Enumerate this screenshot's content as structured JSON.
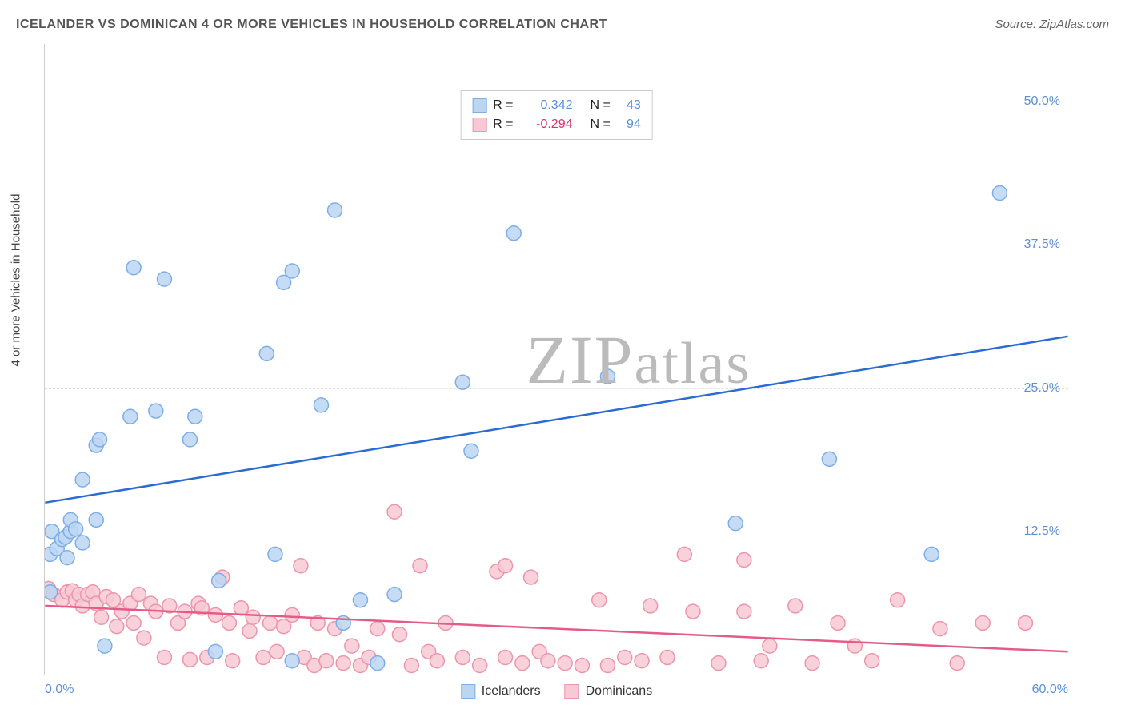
{
  "title": "ICELANDER VS DOMINICAN 4 OR MORE VEHICLES IN HOUSEHOLD CORRELATION CHART",
  "source": "Source: ZipAtlas.com",
  "yaxis_label": "4 or more Vehicles in Household",
  "watermark": {
    "pre": "ZIP",
    "post": "atlas"
  },
  "chart": {
    "type": "scatter",
    "xlim": [
      0,
      60
    ],
    "ylim": [
      0,
      55
    ],
    "yticks": [
      {
        "value": 12.5,
        "label": "12.5%"
      },
      {
        "value": 25.0,
        "label": "25.0%"
      },
      {
        "value": 37.5,
        "label": "37.5%"
      },
      {
        "value": 50.0,
        "label": "50.0%"
      }
    ],
    "xticks": [
      {
        "value": 0,
        "label": "0.0%",
        "align": "left"
      },
      {
        "value": 60,
        "label": "60.0%",
        "align": "right"
      }
    ],
    "background_color": "#ffffff",
    "grid_color": "#dddddd",
    "series": [
      {
        "name": "Icelanders",
        "marker_fill": "#bcd6f2",
        "marker_stroke": "#7daee6",
        "marker_radius": 9,
        "line_color": "#2b6cd4",
        "line_width": 2.5,
        "correlation": {
          "R_label": "R =",
          "R_value": "0.342",
          "R_neg": false,
          "N_label": "N =",
          "N_value": "43"
        },
        "regression": {
          "x1": 0,
          "y1": 15.0,
          "x2": 60,
          "y2": 29.5
        },
        "points": [
          {
            "x": 0.3,
            "y": 10.5
          },
          {
            "x": 0.3,
            "y": 7.2
          },
          {
            "x": 0.4,
            "y": 12.5
          },
          {
            "x": 0.7,
            "y": 11.0
          },
          {
            "x": 1.0,
            "y": 11.8
          },
          {
            "x": 1.2,
            "y": 12.0
          },
          {
            "x": 1.3,
            "y": 10.2
          },
          {
            "x": 1.5,
            "y": 12.5
          },
          {
            "x": 1.5,
            "y": 13.5
          },
          {
            "x": 1.8,
            "y": 12.7
          },
          {
            "x": 2.2,
            "y": 17.0
          },
          {
            "x": 2.2,
            "y": 11.5
          },
          {
            "x": 3.0,
            "y": 13.5
          },
          {
            "x": 3.0,
            "y": 20.0
          },
          {
            "x": 3.2,
            "y": 20.5
          },
          {
            "x": 3.5,
            "y": 2.5
          },
          {
            "x": 5.0,
            "y": 22.5
          },
          {
            "x": 5.2,
            "y": 35.5
          },
          {
            "x": 6.5,
            "y": 23.0
          },
          {
            "x": 7.0,
            "y": 34.5
          },
          {
            "x": 8.5,
            "y": 20.5
          },
          {
            "x": 8.8,
            "y": 22.5
          },
          {
            "x": 10.0,
            "y": 2.0
          },
          {
            "x": 10.2,
            "y": 8.2
          },
          {
            "x": 13.0,
            "y": 28.0
          },
          {
            "x": 13.5,
            "y": 10.5
          },
          {
            "x": 14.0,
            "y": 34.2
          },
          {
            "x": 14.5,
            "y": 35.2
          },
          {
            "x": 14.5,
            "y": 1.2
          },
          {
            "x": 16.2,
            "y": 23.5
          },
          {
            "x": 17.0,
            "y": 40.5
          },
          {
            "x": 17.5,
            "y": 4.5
          },
          {
            "x": 18.5,
            "y": 6.5
          },
          {
            "x": 20.5,
            "y": 7.0
          },
          {
            "x": 24.5,
            "y": 25.5
          },
          {
            "x": 25.0,
            "y": 19.5
          },
          {
            "x": 27.5,
            "y": 38.5
          },
          {
            "x": 33.0,
            "y": 26.0
          },
          {
            "x": 40.5,
            "y": 13.2
          },
          {
            "x": 46.0,
            "y": 18.8
          },
          {
            "x": 52.0,
            "y": 10.5
          },
          {
            "x": 56.0,
            "y": 42.0
          },
          {
            "x": 19.5,
            "y": 1.0
          }
        ]
      },
      {
        "name": "Dominicans",
        "marker_fill": "#f7c9d4",
        "marker_stroke": "#ec95ab",
        "marker_radius": 9,
        "line_color": "#e55b87",
        "line_width": 2.5,
        "correlation": {
          "R_label": "R =",
          "R_value": "-0.294",
          "R_neg": true,
          "N_label": "N =",
          "N_value": "94"
        },
        "regression": {
          "x1": 0,
          "y1": 6.0,
          "x2": 60,
          "y2": 2.0
        },
        "points": [
          {
            "x": 0.2,
            "y": 7.5
          },
          {
            "x": 0.5,
            "y": 7.0
          },
          {
            "x": 1.0,
            "y": 6.5
          },
          {
            "x": 1.3,
            "y": 7.2
          },
          {
            "x": 1.6,
            "y": 7.3
          },
          {
            "x": 1.8,
            "y": 6.5
          },
          {
            "x": 2.0,
            "y": 7.0
          },
          {
            "x": 2.2,
            "y": 6.0
          },
          {
            "x": 2.5,
            "y": 7.0
          },
          {
            "x": 2.8,
            "y": 7.2
          },
          {
            "x": 3.0,
            "y": 6.2
          },
          {
            "x": 3.3,
            "y": 5.0
          },
          {
            "x": 3.6,
            "y": 6.8
          },
          {
            "x": 4.0,
            "y": 6.5
          },
          {
            "x": 4.2,
            "y": 4.2
          },
          {
            "x": 4.5,
            "y": 5.5
          },
          {
            "x": 5.0,
            "y": 6.2
          },
          {
            "x": 5.2,
            "y": 4.5
          },
          {
            "x": 5.5,
            "y": 7.0
          },
          {
            "x": 5.8,
            "y": 3.2
          },
          {
            "x": 6.2,
            "y": 6.2
          },
          {
            "x": 6.5,
            "y": 5.5
          },
          {
            "x": 7.0,
            "y": 1.5
          },
          {
            "x": 7.3,
            "y": 6.0
          },
          {
            "x": 7.8,
            "y": 4.5
          },
          {
            "x": 8.2,
            "y": 5.5
          },
          {
            "x": 8.5,
            "y": 1.3
          },
          {
            "x": 9.0,
            "y": 6.2
          },
          {
            "x": 9.2,
            "y": 5.8
          },
          {
            "x": 9.5,
            "y": 1.5
          },
          {
            "x": 10.0,
            "y": 5.2
          },
          {
            "x": 10.4,
            "y": 8.5
          },
          {
            "x": 10.8,
            "y": 4.5
          },
          {
            "x": 11.0,
            "y": 1.2
          },
          {
            "x": 11.5,
            "y": 5.8
          },
          {
            "x": 12.0,
            "y": 3.8
          },
          {
            "x": 12.2,
            "y": 5.0
          },
          {
            "x": 12.8,
            "y": 1.5
          },
          {
            "x": 13.2,
            "y": 4.5
          },
          {
            "x": 13.6,
            "y": 2.0
          },
          {
            "x": 14.0,
            "y": 4.2
          },
          {
            "x": 14.5,
            "y": 5.2
          },
          {
            "x": 15.0,
            "y": 9.5
          },
          {
            "x": 15.2,
            "y": 1.5
          },
          {
            "x": 15.8,
            "y": 0.8
          },
          {
            "x": 16.0,
            "y": 4.5
          },
          {
            "x": 16.5,
            "y": 1.2
          },
          {
            "x": 17.0,
            "y": 4.0
          },
          {
            "x": 17.5,
            "y": 1.0
          },
          {
            "x": 18.0,
            "y": 2.5
          },
          {
            "x": 18.5,
            "y": 0.8
          },
          {
            "x": 19.0,
            "y": 1.5
          },
          {
            "x": 19.5,
            "y": 4.0
          },
          {
            "x": 20.5,
            "y": 14.2
          },
          {
            "x": 20.8,
            "y": 3.5
          },
          {
            "x": 21.5,
            "y": 0.8
          },
          {
            "x": 22.0,
            "y": 9.5
          },
          {
            "x": 22.5,
            "y": 2.0
          },
          {
            "x": 23.0,
            "y": 1.2
          },
          {
            "x": 23.5,
            "y": 4.5
          },
          {
            "x": 24.5,
            "y": 1.5
          },
          {
            "x": 25.5,
            "y": 0.8
          },
          {
            "x": 26.5,
            "y": 9.0
          },
          {
            "x": 27.0,
            "y": 1.5
          },
          {
            "x": 27.0,
            "y": 9.5
          },
          {
            "x": 28.0,
            "y": 1.0
          },
          {
            "x": 28.5,
            "y": 8.5
          },
          {
            "x": 29.0,
            "y": 2.0
          },
          {
            "x": 29.5,
            "y": 1.2
          },
          {
            "x": 30.5,
            "y": 1.0
          },
          {
            "x": 31.5,
            "y": 0.8
          },
          {
            "x": 32.5,
            "y": 6.5
          },
          {
            "x": 33.0,
            "y": 0.8
          },
          {
            "x": 34.0,
            "y": 1.5
          },
          {
            "x": 35.0,
            "y": 1.2
          },
          {
            "x": 35.5,
            "y": 6.0
          },
          {
            "x": 36.5,
            "y": 1.5
          },
          {
            "x": 37.5,
            "y": 10.5
          },
          {
            "x": 38.0,
            "y": 5.5
          },
          {
            "x": 39.5,
            "y": 1.0
          },
          {
            "x": 41.0,
            "y": 10.0
          },
          {
            "x": 41.0,
            "y": 5.5
          },
          {
            "x": 42.0,
            "y": 1.2
          },
          {
            "x": 42.5,
            "y": 2.5
          },
          {
            "x": 44.0,
            "y": 6.0
          },
          {
            "x": 45.0,
            "y": 1.0
          },
          {
            "x": 46.5,
            "y": 4.5
          },
          {
            "x": 47.5,
            "y": 2.5
          },
          {
            "x": 48.5,
            "y": 1.2
          },
          {
            "x": 50.0,
            "y": 6.5
          },
          {
            "x": 52.5,
            "y": 4.0
          },
          {
            "x": 53.5,
            "y": 1.0
          },
          {
            "x": 55.0,
            "y": 4.5
          },
          {
            "x": 57.5,
            "y": 4.5
          }
        ]
      }
    ]
  }
}
